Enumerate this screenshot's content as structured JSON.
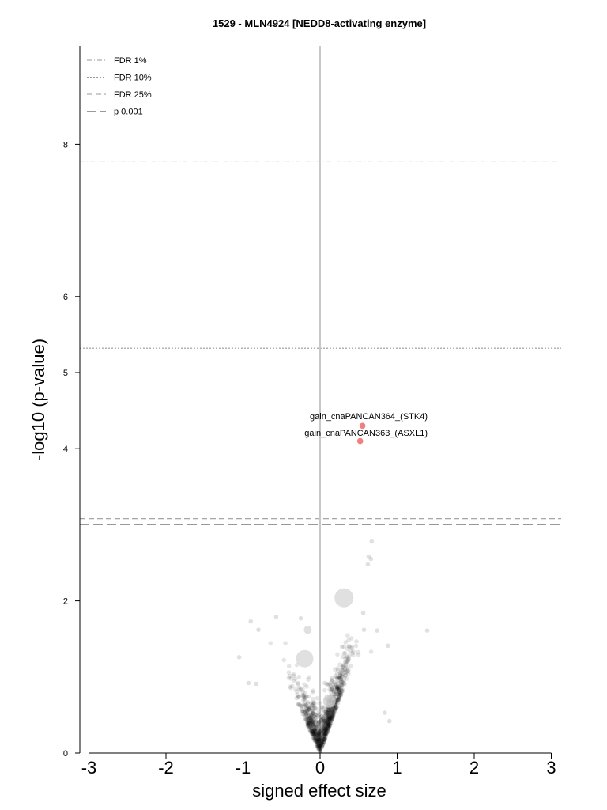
{
  "chart_data": {
    "type": "scatter",
    "title": "1529 - MLN4924 [NEDD8-activating enzyme]",
    "xlabel": "signed effect size",
    "ylabel": "-log10 (p-value)",
    "xlim": [
      -3.1,
      3.1
    ],
    "ylim": [
      0,
      9.2
    ],
    "x_ticks": [
      -3,
      -2,
      -1,
      0,
      1,
      2,
      3
    ],
    "y_ticks": [
      0,
      2,
      4,
      5,
      6,
      8
    ],
    "threshold_lines": [
      {
        "label": "FDR 1%",
        "y": 7.78,
        "style": "dashdot"
      },
      {
        "label": "FDR 10%",
        "y": 5.32,
        "style": "dotted"
      },
      {
        "label": "FDR 25%",
        "y": 3.08,
        "style": "dashed"
      },
      {
        "label": "p 0.001",
        "y": 3.0,
        "style": "longdash"
      }
    ],
    "legend_placement": "top-left",
    "highlighted": [
      {
        "label": "gain_cnaPANCAN364_(STK4)",
        "x": 0.55,
        "y": 4.3,
        "color": "#f08080"
      },
      {
        "label": "gain_cnaPANCAN363_(ASXL1)",
        "x": 0.52,
        "y": 4.1,
        "color": "#f08080"
      }
    ],
    "large_points": [
      {
        "x": 0.31,
        "y": 2.04
      },
      {
        "x": -0.2,
        "y": 1.24
      },
      {
        "x": 0.12,
        "y": 0.68
      },
      {
        "x": -0.16,
        "y": 1.62
      }
    ],
    "outliers": [
      {
        "x": 1.39,
        "y": 1.61
      },
      {
        "x": -1.05,
        "y": 1.26
      },
      {
        "x": -0.9,
        "y": 1.73
      },
      {
        "x": -0.57,
        "y": 1.79
      },
      {
        "x": -0.25,
        "y": 1.77
      },
      {
        "x": -0.8,
        "y": 1.62
      },
      {
        "x": 0.67,
        "y": 2.78
      },
      {
        "x": 0.63,
        "y": 2.58
      },
      {
        "x": 0.66,
        "y": 2.55
      },
      {
        "x": 0.62,
        "y": 2.48
      },
      {
        "x": 0.56,
        "y": 1.84
      },
      {
        "x": 0.57,
        "y": 1.62
      },
      {
        "x": 0.74,
        "y": 1.61
      },
      {
        "x": 0.88,
        "y": 1.41
      },
      {
        "x": -0.93,
        "y": 0.92
      },
      {
        "x": -0.83,
        "y": 0.91
      },
      {
        "x": 0.84,
        "y": 0.53
      },
      {
        "x": 0.9,
        "y": 0.42
      }
    ],
    "colors": {
      "bulk_points": "#000000",
      "highlight": "#f08080",
      "large_points": "#d3d3d3",
      "threshold": "#999999",
      "zero_line": "#c8c8c8"
    }
  }
}
